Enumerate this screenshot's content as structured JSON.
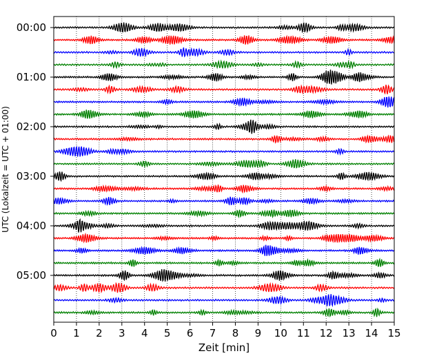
{
  "chart_data": {
    "type": "line",
    "title": "",
    "xlabel": "Zeit  [min]",
    "ylabel": "UTC (Lokalzeit = UTC + 01:00)",
    "xlim": [
      0,
      15
    ],
    "x_ticks": [
      "0",
      "1",
      "2",
      "3",
      "4",
      "5",
      "6",
      "7",
      "8",
      "9",
      "10",
      "11",
      "12",
      "13",
      "14",
      "15"
    ],
    "y_ticks": [
      "00:00",
      "01:00",
      "02:00",
      "03:00",
      "04:00",
      "05:00"
    ],
    "rows_per_hour": 4,
    "row_minutes": 15,
    "trace_start": "00:00",
    "trace_end": "06:00",
    "grid": true,
    "trace_colors": [
      "#000000",
      "#ff0000",
      "#0000ff",
      "#008000"
    ],
    "row_count": 24
  }
}
